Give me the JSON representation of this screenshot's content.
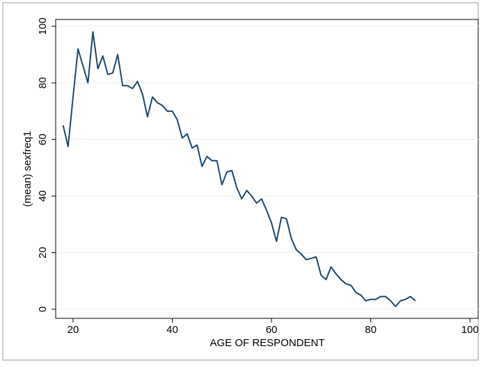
{
  "chart_data": {
    "type": "line",
    "x_label": "AGE OF RESPONDENT",
    "y_label": "(mean) sexfreq1",
    "x": [
      18,
      19,
      20,
      21,
      22,
      23,
      24,
      25,
      26,
      27,
      28,
      29,
      30,
      31,
      32,
      33,
      34,
      35,
      36,
      37,
      38,
      39,
      40,
      41,
      42,
      43,
      44,
      45,
      46,
      47,
      48,
      49,
      50,
      51,
      52,
      53,
      54,
      55,
      56,
      57,
      58,
      59,
      60,
      61,
      62,
      63,
      64,
      65,
      66,
      67,
      68,
      69,
      70,
      71,
      72,
      73,
      74,
      75,
      76,
      77,
      78,
      79,
      80,
      81,
      82,
      83,
      84,
      85,
      86,
      87,
      88,
      89
    ],
    "values": [
      65,
      57.5,
      75,
      92,
      86,
      80,
      98,
      85,
      89.5,
      83,
      83.5,
      90,
      79,
      79,
      78,
      80.5,
      76,
      68,
      75,
      73,
      72,
      70,
      70,
      67,
      60.5,
      62,
      57,
      58,
      50.5,
      54,
      52.5,
      52.5,
      44,
      48.5,
      49,
      43,
      39,
      42,
      40,
      37.5,
      39,
      35,
      30.5,
      24,
      32.5,
      32,
      25,
      21,
      19.5,
      17.5,
      18,
      18.5,
      12,
      10.5,
      15,
      12.5,
      10.5,
      9,
      8.5,
      6,
      5,
      3,
      3.5,
      3.5,
      4.5,
      4.5,
      3,
      1,
      3,
      3.5,
      4.5,
      3
    ],
    "color": "#1a476f",
    "xlim": [
      16.5,
      101.8
    ],
    "ylim": [
      -3.2,
      102.4
    ],
    "xticks": [
      20,
      40,
      60,
      80,
      100
    ],
    "yticks": [
      0,
      20,
      40,
      60,
      80,
      100
    ],
    "grid": true
  }
}
